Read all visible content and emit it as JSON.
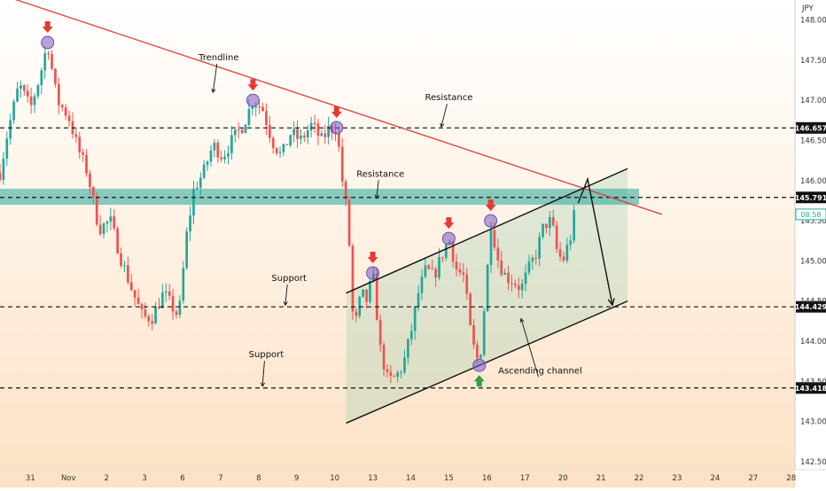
{
  "chart_data": {
    "type": "candlestick",
    "currency_label": "JPY",
    "clock": "08:58",
    "y_ticks": [
      148.0,
      147.5,
      147.0,
      146.5,
      146.0,
      145.5,
      145.0,
      144.5,
      144.0,
      143.5,
      143.0,
      142.5
    ],
    "y_tick_labels": [
      "148.000",
      "147.500",
      "147.000",
      "146.500",
      "146.000",
      "145.500",
      "145.000",
      "144.500",
      "144.000",
      "143.500",
      "143.000",
      "142.500"
    ],
    "ylim": [
      142.4,
      148.25
    ],
    "x_labels": [
      {
        "text": "31",
        "day": 0
      },
      {
        "text": "Nov",
        "day": 1
      },
      {
        "text": "2",
        "day": 2
      },
      {
        "text": "3",
        "day": 3
      },
      {
        "text": "6",
        "day": 4
      },
      {
        "text": "7",
        "day": 5
      },
      {
        "text": "8",
        "day": 6
      },
      {
        "text": "9",
        "day": 7
      },
      {
        "text": "10",
        "day": 8
      },
      {
        "text": "13",
        "day": 9
      },
      {
        "text": "14",
        "day": 10
      },
      {
        "text": "15",
        "day": 11
      },
      {
        "text": "16",
        "day": 12
      },
      {
        "text": "17",
        "day": 13
      },
      {
        "text": "20",
        "day": 14
      },
      {
        "text": "21",
        "day": 15
      },
      {
        "text": "22",
        "day": 16
      },
      {
        "text": "23",
        "day": 17
      },
      {
        "text": "24",
        "day": 18
      },
      {
        "text": "27",
        "day": 19
      },
      {
        "text": "28",
        "day": 20
      }
    ],
    "xlim": [
      -0.8,
      20.1
    ],
    "last_price": 145.58,
    "price_levels": [
      {
        "value": 146.657,
        "label": "146.657"
      },
      {
        "value": 145.791,
        "label": "145.791"
      },
      {
        "value": 144.429,
        "label": "144.429"
      },
      {
        "value": 143.418,
        "label": "143.418"
      }
    ],
    "resistance_zone": [
      145.7,
      145.9
    ],
    "trendline": {
      "from": [
        -0.8,
        148.32
      ],
      "to": [
        16.6,
        145.58
      ]
    },
    "channel": {
      "upper": {
        "from": [
          8.3,
          144.6
        ],
        "to": [
          15.7,
          146.15
        ]
      },
      "lower": {
        "from": [
          8.3,
          142.98
        ],
        "to": [
          15.7,
          144.5
        ]
      }
    },
    "projection": [
      [
        14.4,
        145.72
      ],
      [
        14.65,
        146.02
      ],
      [
        15.3,
        144.45
      ]
    ],
    "annotations": [
      {
        "text": "Trendline",
        "day": 4.95,
        "price": 147.5,
        "arrow_to": [
          4.8,
          147.1
        ]
      },
      {
        "text": "Resistance",
        "day": 11.0,
        "price": 147.0,
        "arrow_to": [
          10.8,
          146.67
        ]
      },
      {
        "text": "Resistance",
        "day": 9.2,
        "price": 146.05,
        "arrow_to": [
          9.1,
          145.78
        ]
      },
      {
        "text": "Support",
        "day": 6.8,
        "price": 144.75,
        "arrow_to": [
          6.7,
          144.45
        ]
      },
      {
        "text": "Support",
        "day": 6.2,
        "price": 143.8,
        "arrow_to": [
          6.1,
          143.44
        ]
      },
      {
        "text": "Ascending channel",
        "day": 13.4,
        "price": 143.6,
        "arrow_to": [
          12.9,
          144.28
        ]
      }
    ],
    "swing_markers": [
      {
        "type": "high",
        "day": 0.45,
        "price": 147.72
      },
      {
        "type": "high",
        "day": 5.85,
        "price": 147.0
      },
      {
        "type": "high",
        "day": 8.05,
        "price": 146.66
      },
      {
        "type": "high",
        "day": 9.0,
        "price": 144.85
      },
      {
        "type": "high",
        "day": 11.0,
        "price": 145.28
      },
      {
        "type": "high",
        "day": 12.1,
        "price": 145.5
      },
      {
        "type": "low",
        "day": 11.8,
        "price": 143.7
      }
    ],
    "candles_per_day": 11,
    "anchors": [
      [
        -0.8,
        146.1
      ],
      [
        -0.6,
        146.6
      ],
      [
        -0.3,
        147.2
      ],
      [
        0.0,
        146.9
      ],
      [
        0.25,
        147.3
      ],
      [
        0.45,
        147.72
      ],
      [
        0.7,
        147.0
      ],
      [
        1.0,
        146.8
      ],
      [
        1.25,
        146.4
      ],
      [
        1.5,
        146.1
      ],
      [
        1.8,
        145.4
      ],
      [
        2.1,
        145.5
      ],
      [
        2.4,
        145.0
      ],
      [
        2.7,
        144.6
      ],
      [
        2.95,
        144.3
      ],
      [
        3.2,
        144.3
      ],
      [
        3.5,
        144.6
      ],
      [
        3.7,
        144.45
      ],
      [
        3.9,
        144.3
      ],
      [
        4.1,
        145.3
      ],
      [
        4.3,
        145.9
      ],
      [
        4.55,
        146.1
      ],
      [
        4.8,
        146.45
      ],
      [
        5.05,
        146.3
      ],
      [
        5.3,
        146.5
      ],
      [
        5.6,
        146.7
      ],
      [
        5.85,
        147.0
      ],
      [
        6.1,
        146.9
      ],
      [
        6.35,
        146.5
      ],
      [
        6.6,
        146.3
      ],
      [
        6.85,
        146.6
      ],
      [
        7.1,
        146.5
      ],
      [
        7.4,
        146.7
      ],
      [
        7.65,
        146.5
      ],
      [
        7.85,
        146.65
      ],
      [
        8.05,
        146.66
      ],
      [
        8.2,
        146.0
      ],
      [
        8.35,
        145.5
      ],
      [
        8.5,
        144.1
      ],
      [
        8.7,
        144.6
      ],
      [
        8.85,
        144.5
      ],
      [
        9.0,
        144.85
      ],
      [
        9.2,
        143.9
      ],
      [
        9.4,
        143.5
      ],
      [
        9.6,
        143.55
      ],
      [
        9.8,
        143.7
      ],
      [
        10.0,
        144.1
      ],
      [
        10.2,
        144.6
      ],
      [
        10.4,
        144.9
      ],
      [
        10.6,
        144.8
      ],
      [
        10.8,
        145.05
      ],
      [
        11.0,
        145.28
      ],
      [
        11.2,
        144.9
      ],
      [
        11.4,
        144.8
      ],
      [
        11.6,
        144.0
      ],
      [
        11.8,
        143.7
      ],
      [
        12.0,
        144.8
      ],
      [
        12.1,
        145.5
      ],
      [
        12.3,
        145.0
      ],
      [
        12.5,
        144.8
      ],
      [
        12.7,
        144.75
      ],
      [
        12.9,
        144.65
      ],
      [
        13.1,
        144.9
      ],
      [
        13.3,
        145.1
      ],
      [
        13.5,
        145.45
      ],
      [
        13.7,
        145.5
      ],
      [
        13.85,
        145.1
      ],
      [
        14.0,
        145.0
      ],
      [
        14.2,
        145.3
      ],
      [
        14.3,
        145.58
      ]
    ]
  }
}
